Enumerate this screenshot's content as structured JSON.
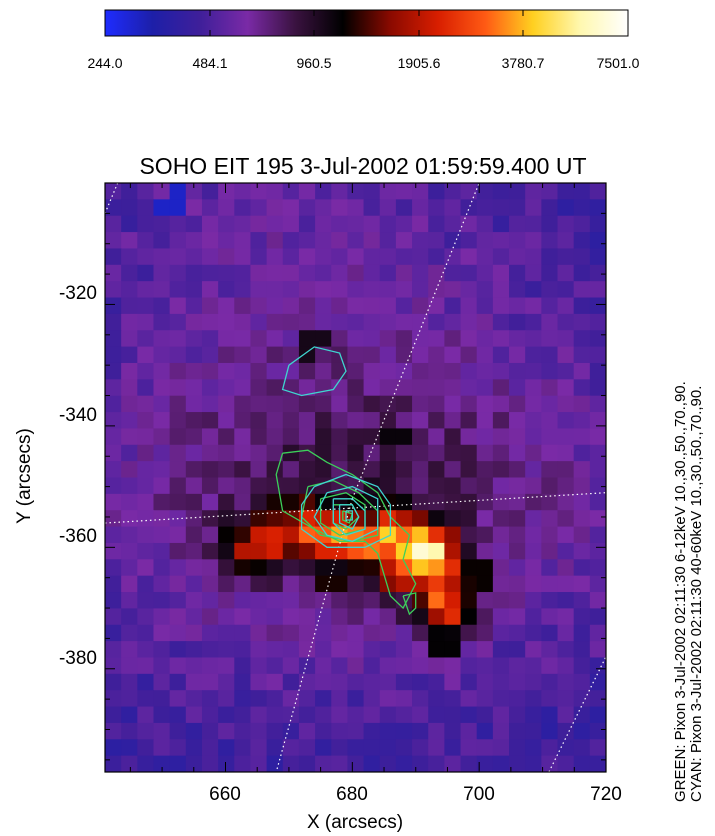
{
  "chart_data": {
    "type": "heatmap",
    "title": "SOHO EIT 195  3-Jul-2002 01:59:59.400 UT",
    "xlabel": "X (arcsecs)",
    "ylabel": "Y (arcsecs)",
    "xlim": [
      641,
      720
    ],
    "ylim": [
      -397,
      -300
    ],
    "xticks": [
      660,
      680,
      700,
      720
    ],
    "yticks": [
      -320,
      -340,
      -360,
      -380
    ],
    "colorbar": {
      "ticks": [
        "244.0",
        "484.1",
        "960.5",
        "1905.6",
        "3780.7",
        "7501.0"
      ],
      "stops": [
        "#1e2cff",
        "#1d1fa8",
        "#3f1f9a",
        "#7a2aa6",
        "#3a1240",
        "#000000",
        "#8a0a00",
        "#d81e00",
        "#ff5a14",
        "#ffd020",
        "#fff8b0",
        "#ffffff"
      ]
    },
    "annotations": [
      "GREEN:  Pixon  3-Jul-2002 02:11:30 6-12keV  10.,30.,50.,70.,90.",
      "CYAN:  Pixon  3-Jul-2002 02:11:30 40-60keV  10.,30.,50.,70.,90."
    ],
    "hot_spots": [
      {
        "x": 673,
        "y": -357,
        "v": 0.72
      },
      {
        "x": 677,
        "y": -358,
        "v": 0.76
      },
      {
        "x": 682,
        "y": -359,
        "v": 0.78
      },
      {
        "x": 686,
        "y": -358.5,
        "v": 0.86
      },
      {
        "x": 690,
        "y": -360,
        "v": 0.98
      },
      {
        "x": 692,
        "y": -361,
        "v": 0.96
      },
      {
        "x": 693,
        "y": -364,
        "v": 0.82
      },
      {
        "x": 694,
        "y": -368,
        "v": 0.74
      },
      {
        "x": 695,
        "y": -370,
        "v": 0.68
      },
      {
        "x": 667,
        "y": -359,
        "v": 0.64
      },
      {
        "x": 664,
        "y": -360,
        "v": 0.58
      },
      {
        "x": 688,
        "y": -363,
        "v": 0.72
      }
    ],
    "cool_spots": [
      {
        "x": 652,
        "y": -303,
        "v": 0.06
      },
      {
        "x": 695,
        "y": -377,
        "v": 0.45
      },
      {
        "x": 700,
        "y": -364,
        "v": 0.46
      },
      {
        "x": 669,
        "y": -352,
        "v": 0.47
      },
      {
        "x": 676,
        "y": -366,
        "v": 0.47
      },
      {
        "x": 673,
        "y": -326,
        "v": 0.42
      },
      {
        "x": 688,
        "y": -342,
        "v": 0.44
      }
    ],
    "series": [
      {
        "name": "GREEN",
        "color": "#3ccf5a",
        "contours": [
          [
            [
              669,
              -344.5
            ],
            [
              673,
              -344
            ],
            [
              676,
              -346
            ],
            [
              680,
              -348
            ],
            [
              684,
              -351
            ],
            [
              686,
              -355
            ],
            [
              689,
              -358
            ],
            [
              688,
              -362
            ],
            [
              690,
              -366
            ],
            [
              688,
              -370
            ],
            [
              686,
              -368
            ],
            [
              684,
              -361
            ],
            [
              682,
              -359
            ],
            [
              678,
              -359
            ],
            [
              674,
              -357
            ],
            [
              669,
              -354
            ],
            [
              668,
              -348
            ],
            [
              669,
              -344.5
            ]
          ],
          [
            [
              673,
              -350
            ],
            [
              677,
              -349
            ],
            [
              681,
              -351
            ],
            [
              684,
              -354
            ],
            [
              684,
              -358
            ],
            [
              680,
              -359
            ],
            [
              675,
              -358
            ],
            [
              672,
              -355
            ],
            [
              673,
              -350
            ]
          ],
          [
            [
              675,
              -352
            ],
            [
              679,
              -351
            ],
            [
              682,
              -353
            ],
            [
              682,
              -357
            ],
            [
              678,
              -358
            ],
            [
              675,
              -356
            ],
            [
              675,
              -352
            ]
          ],
          [
            [
              677,
              -353
            ],
            [
              680,
              -353
            ],
            [
              681,
              -355
            ],
            [
              679,
              -357
            ],
            [
              677,
              -356
            ],
            [
              677,
              -353
            ]
          ],
          [
            [
              678.5,
              -354
            ],
            [
              680,
              -354.5
            ],
            [
              679.5,
              -356
            ],
            [
              678.5,
              -355.5
            ],
            [
              678.5,
              -354
            ]
          ],
          [
            [
              688,
              -368
            ],
            [
              690,
              -367.5
            ],
            [
              690,
              -370
            ],
            [
              689,
              -371
            ],
            [
              688,
              -368
            ]
          ]
        ]
      },
      {
        "name": "CYAN",
        "color": "#3fd5d0",
        "contours": [
          [
            [
              670,
              -330
            ],
            [
              674,
              -327
            ],
            [
              678,
              -328
            ],
            [
              679,
              -331
            ],
            [
              677,
              -334
            ],
            [
              672,
              -335
            ],
            [
              669,
              -334
            ],
            [
              670,
              -330
            ]
          ],
          [
            [
              674,
              -350
            ],
            [
              679,
              -348
            ],
            [
              684,
              -350
            ],
            [
              686,
              -353
            ],
            [
              686,
              -358
            ],
            [
              682,
              -360
            ],
            [
              676,
              -360
            ],
            [
              672,
              -357
            ],
            [
              672,
              -353
            ],
            [
              674,
              -350
            ]
          ],
          [
            [
              676,
              -351
            ],
            [
              680,
              -350
            ],
            [
              684,
              -352
            ],
            [
              684,
              -357
            ],
            [
              680,
              -359
            ],
            [
              676,
              -358
            ],
            [
              674,
              -355
            ],
            [
              676,
              -351
            ]
          ],
          [
            [
              677,
              -352
            ],
            [
              680,
              -352
            ],
            [
              682,
              -354
            ],
            [
              682,
              -357
            ],
            [
              679,
              -358
            ],
            [
              677,
              -356
            ],
            [
              677,
              -352
            ]
          ],
          [
            [
              678,
              -353
            ],
            [
              680,
              -353
            ],
            [
              681,
              -355
            ],
            [
              680,
              -357
            ],
            [
              678,
              -356
            ],
            [
              678,
              -353
            ]
          ],
          [
            [
              679,
              -354
            ],
            [
              680,
              -354
            ],
            [
              680,
              -355.5
            ],
            [
              679,
              -355.5
            ],
            [
              679,
              -354
            ]
          ]
        ]
      }
    ],
    "grid_lines": [
      [
        [
          641,
          -356
        ],
        [
          720,
          -351
        ]
      ],
      [
        [
          680,
          -352
        ],
        [
          700,
          -300
        ]
      ],
      [
        [
          680,
          -352
        ],
        [
          668,
          -397
        ]
      ],
      [
        [
          641,
          -305
        ],
        [
          643,
          -300
        ]
      ],
      [
        [
          711,
          -397
        ],
        [
          720,
          -378
        ]
      ]
    ]
  }
}
